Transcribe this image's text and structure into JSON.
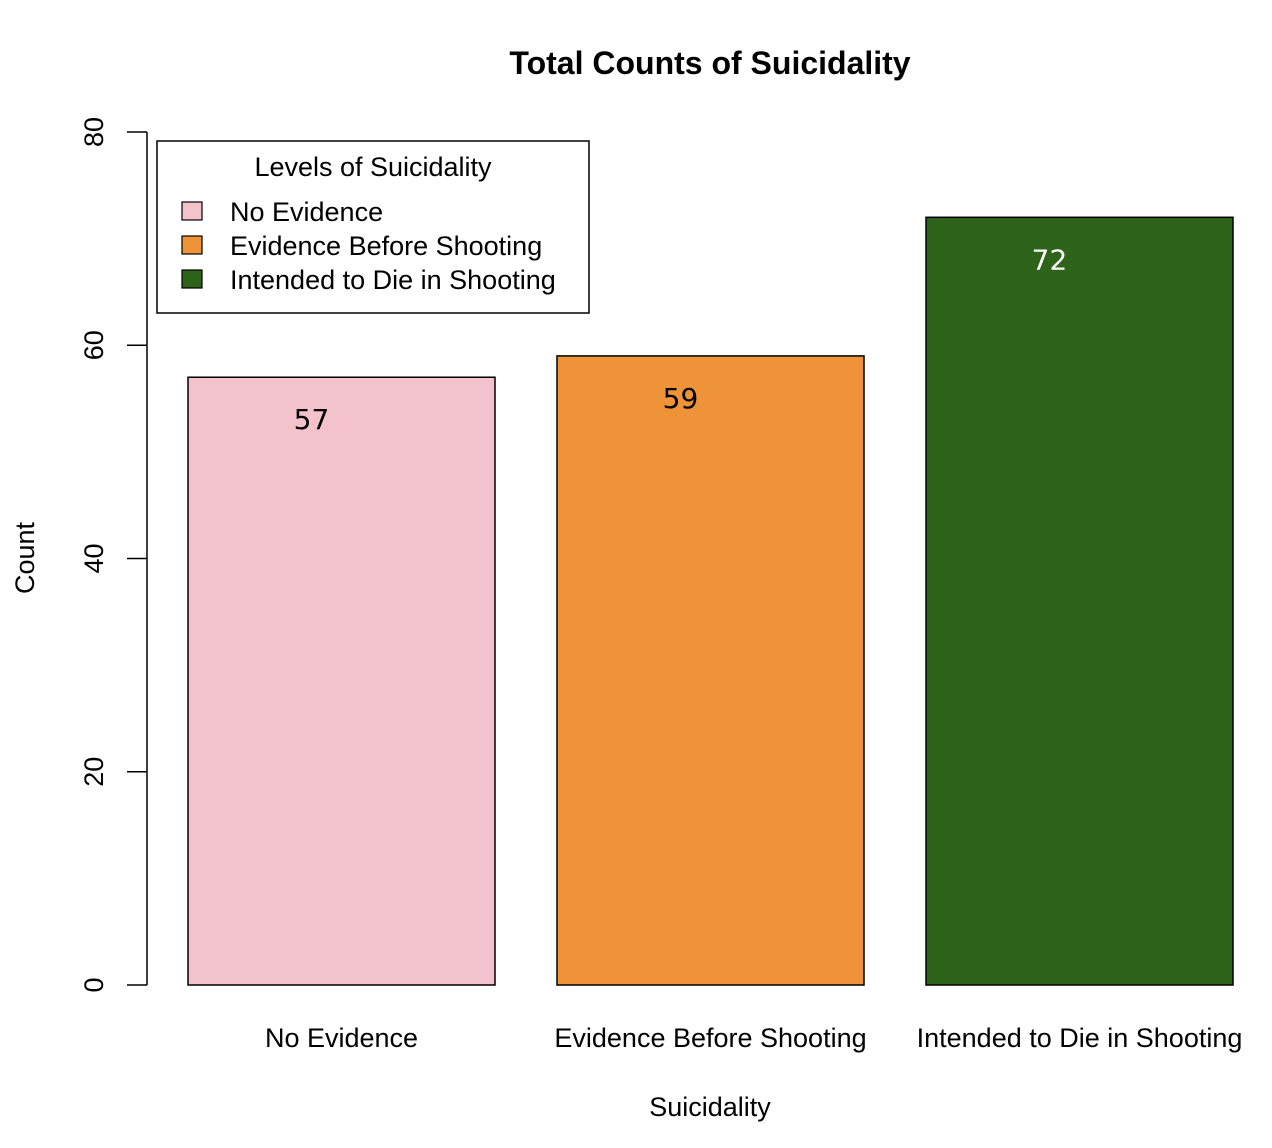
{
  "chart_data": {
    "type": "bar",
    "title": "Total Counts of Suicidality",
    "xlabel": "Suicidality",
    "ylabel": "Count",
    "categories": [
      "No Evidence",
      "Evidence Before Shooting",
      "Intended to Die in Shooting"
    ],
    "values": [
      57,
      59,
      72
    ],
    "data_labels": [
      "57",
      "59",
      "72"
    ],
    "colors": [
      "#f4c2cc",
      "#ee9338",
      "#2d6419"
    ],
    "data_label_colors": [
      "#000000",
      "#000000",
      "#ffffff"
    ],
    "ylim": [
      0,
      80
    ],
    "yticks": [
      0,
      20,
      40,
      60,
      80
    ],
    "ytick_labels": [
      "0",
      "20",
      "40",
      "60",
      "80"
    ],
    "grid": false,
    "legend": {
      "title": "Levels of Suicidality",
      "position": "top-left",
      "entries": [
        "No Evidence",
        "Evidence Before Shooting",
        "Intended to Die in Shooting"
      ]
    }
  }
}
